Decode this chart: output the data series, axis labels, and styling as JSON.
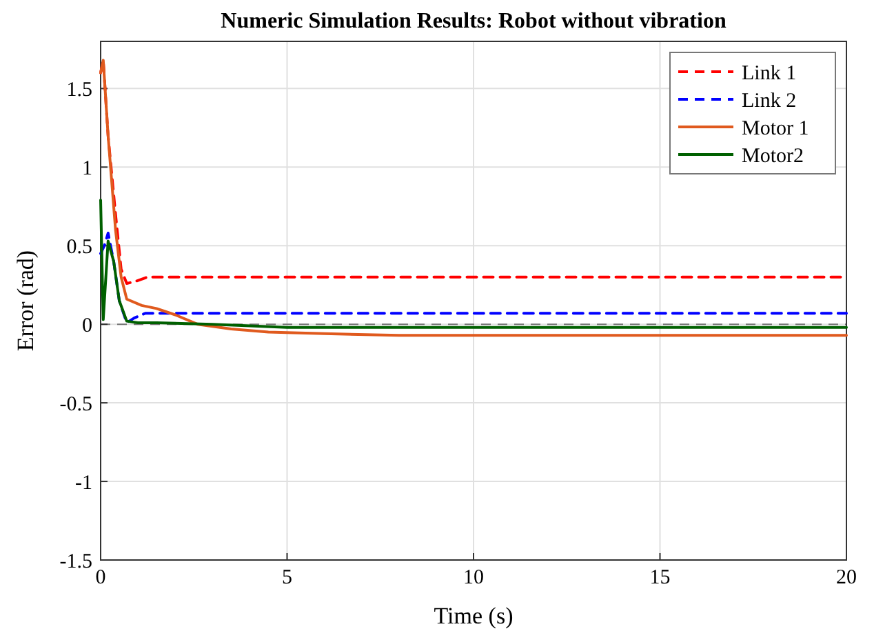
{
  "chart_data": {
    "type": "line",
    "title": "Numeric Simulation Results: Robot without vibration",
    "xlabel": "Time (s)",
    "ylabel": "Error (rad)",
    "xlim": [
      0,
      20
    ],
    "ylim": [
      -1.5,
      1.8
    ],
    "xticks": [
      0,
      5,
      10,
      15,
      20
    ],
    "yticks": [
      -1.5,
      -1,
      -0.5,
      0,
      0.5,
      1,
      1.5
    ],
    "grid": true,
    "legend": "top right",
    "ref_lines": [
      {
        "axis": "y",
        "value": 0,
        "color": "#777777",
        "line_style": "dashed"
      }
    ],
    "series": [
      {
        "name": "Link 1",
        "color": "#ff0000",
        "line_style": "dashed",
        "x": [
          0,
          0.07,
          0.2,
          0.4,
          0.55,
          0.7,
          0.9,
          1.25,
          2,
          5,
          10,
          15,
          20
        ],
        "values": [
          1.6,
          1.68,
          1.2,
          0.7,
          0.35,
          0.26,
          0.27,
          0.3,
          0.3,
          0.3,
          0.3,
          0.3,
          0.3
        ]
      },
      {
        "name": "Link 2",
        "color": "#0000ff",
        "line_style": "dashed",
        "x": [
          0,
          0.1,
          0.2,
          0.35,
          0.5,
          0.7,
          0.9,
          1.2,
          2,
          5,
          10,
          15,
          20
        ],
        "values": [
          0.45,
          0.5,
          0.58,
          0.4,
          0.15,
          0.01,
          0.04,
          0.07,
          0.07,
          0.07,
          0.07,
          0.07,
          0.07
        ]
      },
      {
        "name": "Motor 1",
        "color": "#e05a1e",
        "line_style": "solid",
        "x": [
          0,
          0.07,
          0.2,
          0.4,
          0.55,
          0.7,
          1.1,
          1.5,
          2,
          2.6,
          3.5,
          4.5,
          6,
          8,
          10,
          15,
          20
        ],
        "values": [
          1.6,
          1.68,
          1.2,
          0.6,
          0.3,
          0.16,
          0.12,
          0.1,
          0.06,
          0,
          -0.03,
          -0.05,
          -0.06,
          -0.07,
          -0.07,
          -0.07,
          -0.07
        ]
      },
      {
        "name": "Motor2",
        "color": "#006000",
        "line_style": "solid",
        "x": [
          0,
          0.07,
          0.2,
          0.35,
          0.5,
          0.7,
          1,
          1.5,
          3,
          5,
          10,
          15,
          20
        ],
        "values": [
          0.79,
          0.03,
          0.53,
          0.4,
          0.15,
          0.02,
          0.01,
          0.01,
          0,
          -0.02,
          -0.02,
          -0.02,
          -0.02
        ]
      }
    ]
  }
}
